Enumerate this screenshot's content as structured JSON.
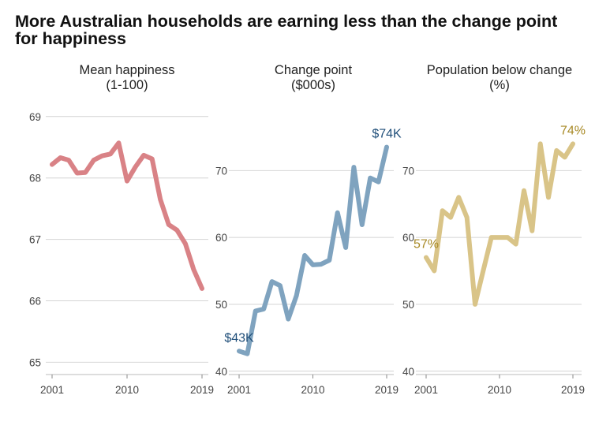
{
  "title": "More Australian households are earning less than the change point for happiness",
  "chart_data": [
    {
      "type": "line",
      "title_line1": "Mean happiness",
      "title_line2": "(1-100)",
      "color": "#d98286",
      "x": [
        2001,
        2002,
        2003,
        2004,
        2005,
        2006,
        2007,
        2008,
        2009,
        2010,
        2011,
        2012,
        2013,
        2014,
        2015,
        2016,
        2017,
        2018,
        2019
      ],
      "values": [
        68.22,
        68.33,
        68.29,
        68.08,
        68.09,
        68.29,
        68.36,
        68.39,
        68.57,
        67.95,
        68.18,
        68.37,
        68.31,
        67.65,
        67.24,
        67.15,
        66.93,
        66.51,
        66.2
      ],
      "ylim": [
        64.8,
        69.1
      ],
      "yticks": [
        "65",
        "66",
        "67",
        "68",
        "69"
      ],
      "xticks": [
        "2001",
        "2010",
        "2019"
      ],
      "annotations": []
    },
    {
      "type": "line",
      "title_line1": "Change point",
      "title_line2": "($000s)",
      "color": "#7fa3bf",
      "x": [
        2001,
        2002,
        2003,
        2004,
        2005,
        2006,
        2007,
        2008,
        2009,
        2010,
        2011,
        2012,
        2013,
        2014,
        2015,
        2016,
        2017,
        2018,
        2019
      ],
      "values": [
        43,
        42.6,
        49,
        49.3,
        53.4,
        52.8,
        47.8,
        51.3,
        57.3,
        55.9,
        56,
        56.6,
        63.7,
        58.5,
        70.5,
        61.9,
        68.9,
        68.3,
        73.5
      ],
      "ylim": [
        39.5,
        79
      ],
      "yticks": [
        "40",
        "50",
        "60",
        "70"
      ],
      "xticks": [
        "2001",
        "2010",
        "2019"
      ],
      "annotations": [
        {
          "text": "$43K",
          "x": 2001,
          "y": 43,
          "color": "#1f4e79",
          "pos": "above"
        },
        {
          "text": "$74K",
          "x": 2019,
          "y": 73.5,
          "color": "#1f4e79",
          "pos": "above"
        }
      ]
    },
    {
      "type": "line",
      "title_line1": "Population below change",
      "title_line2": "(%)",
      "color": "#d9c488",
      "x": [
        2001,
        2002,
        2003,
        2004,
        2005,
        2006,
        2007,
        2008,
        2009,
        2010,
        2011,
        2012,
        2013,
        2014,
        2015,
        2016,
        2017,
        2018,
        2019
      ],
      "values": [
        57,
        55,
        64,
        63,
        66,
        63,
        50,
        55,
        60,
        60,
        60,
        59,
        67,
        61,
        74,
        66,
        73,
        72,
        74
      ],
      "ylim": [
        39.5,
        79
      ],
      "yticks": [
        "40",
        "50",
        "60",
        "70"
      ],
      "xticks": [
        "2001",
        "2010",
        "2019"
      ],
      "annotations": [
        {
          "text": "57%",
          "x": 2001,
          "y": 57,
          "color": "#a88a26",
          "pos": "above"
        },
        {
          "text": "74%",
          "x": 2019,
          "y": 74,
          "color": "#a88a26",
          "pos": "above"
        }
      ]
    }
  ]
}
